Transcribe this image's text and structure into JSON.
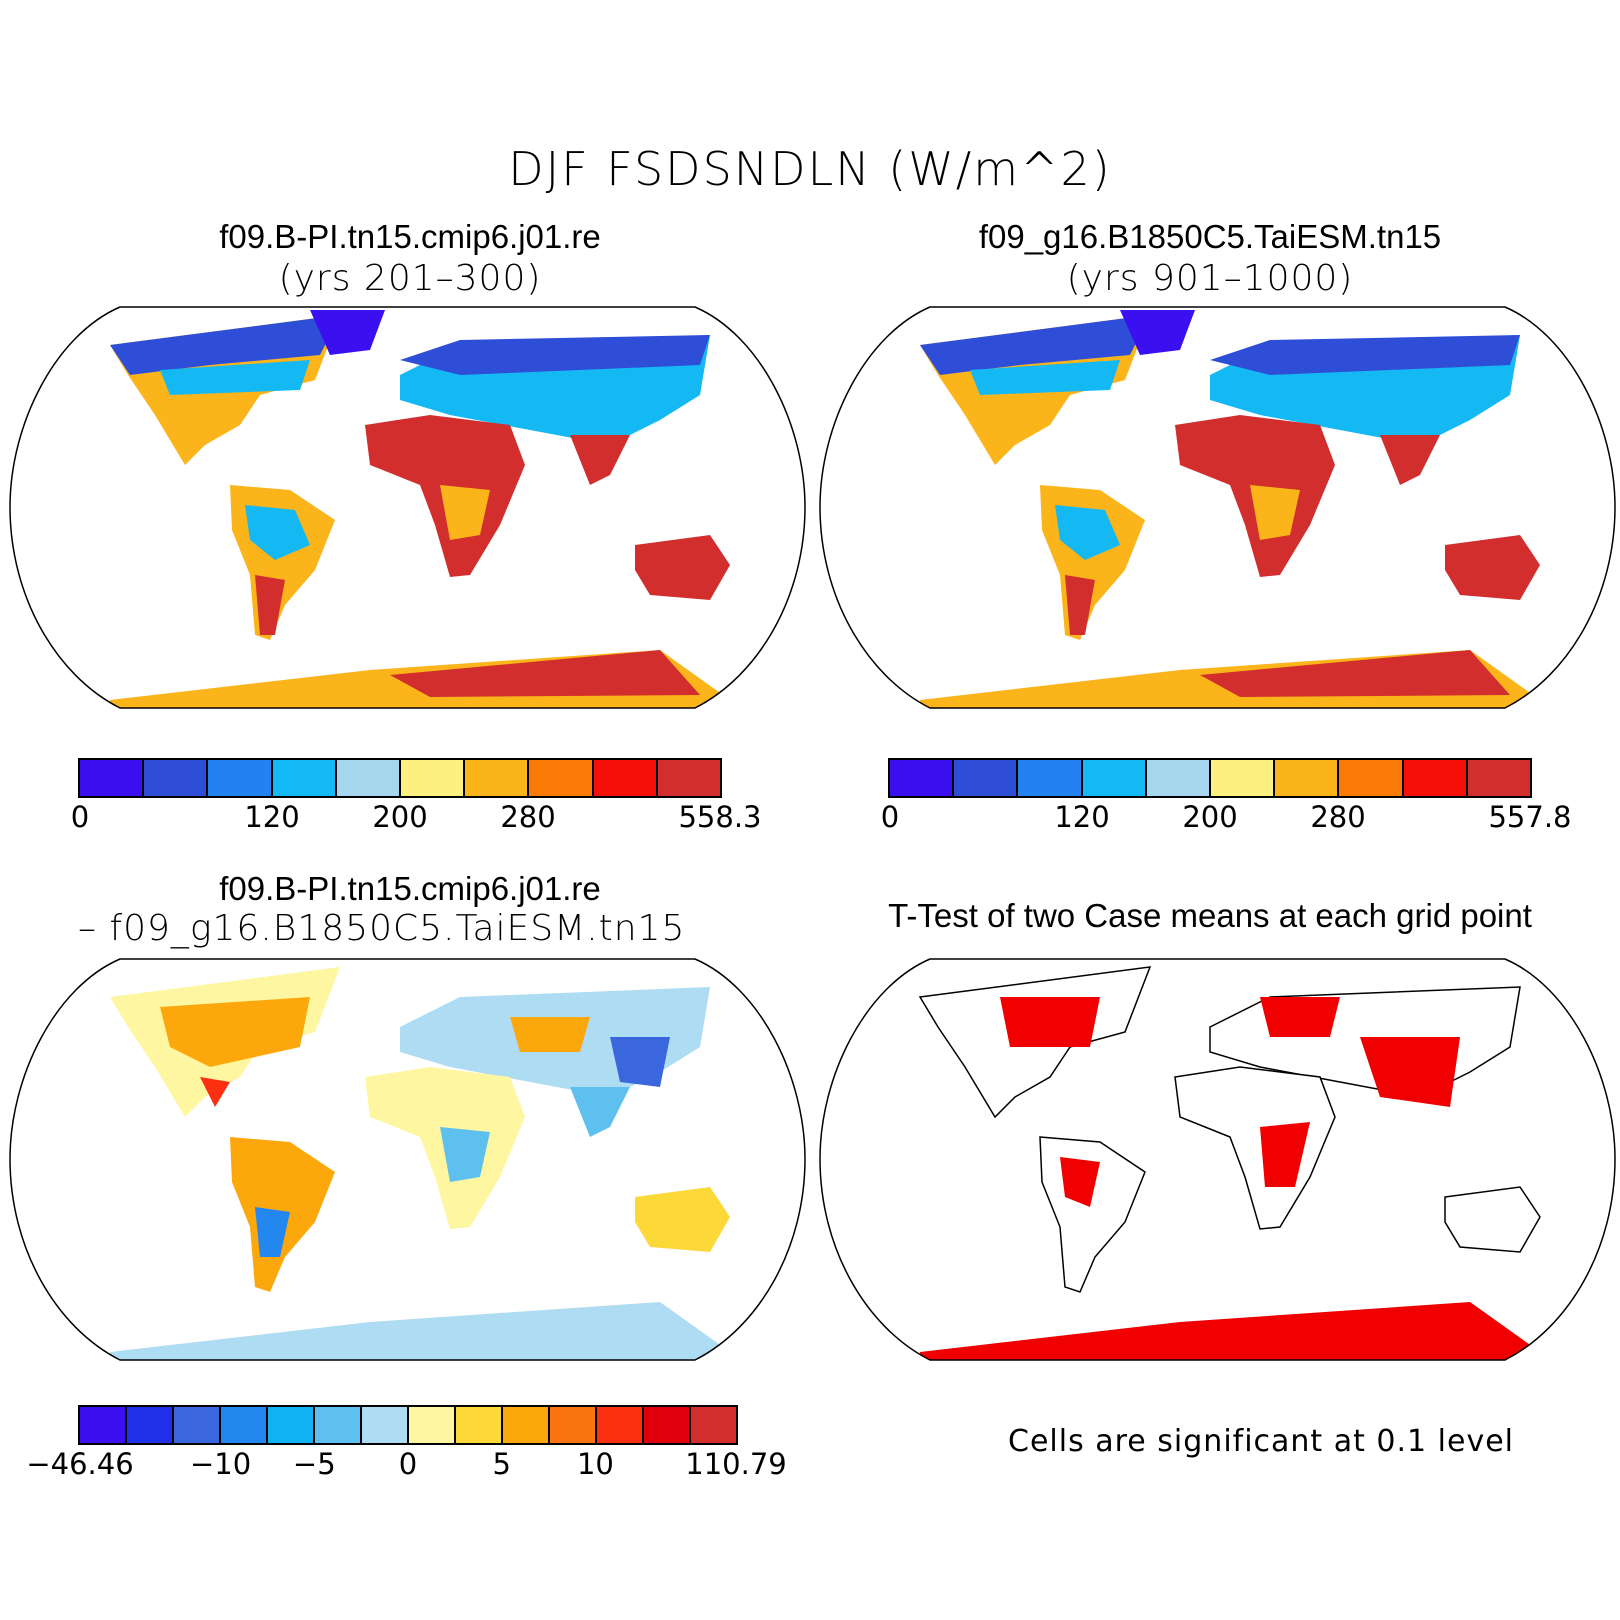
{
  "title": "DJF FSDSNDLN (W/m^2)",
  "panels": {
    "case1": {
      "title": "f09.B-PI.tn15.cmip6.j01.re",
      "years": "(yrs 201–300)"
    },
    "case2": {
      "title": "f09_g16.B1850C5.TaiESM.tn15",
      "years": "(yrs 901–1000)"
    },
    "diff": {
      "title": "f09.B-PI.tn15.cmip6.j01.re",
      "subtitle": "– f09_g16.B1850C5.TaiESM.tn15"
    },
    "ttest": {
      "title": "T-Test of two Case means at each grid point",
      "note": "Cells are significant at 0.1 level"
    }
  },
  "colorbars": {
    "case1": {
      "colors": [
        "#3b10f0",
        "#2f4ed8",
        "#2482f0",
        "#14b8f2",
        "#a6d5ee",
        "#fcf080",
        "#fbb41a",
        "#fa7a08",
        "#f41008",
        "#d22e2e"
      ],
      "tick_labels": [
        "0",
        "120",
        "200",
        "280",
        "558.3"
      ],
      "tick_positions": [
        0,
        3,
        5,
        7,
        10
      ]
    },
    "case2": {
      "colors": [
        "#3b10f0",
        "#2f4ed8",
        "#2482f0",
        "#14b8f2",
        "#a6d5ee",
        "#fcf080",
        "#fbb41a",
        "#fa7a08",
        "#f41008",
        "#d22e2e"
      ],
      "tick_labels": [
        "0",
        "120",
        "200",
        "280",
        "557.8"
      ],
      "tick_positions": [
        0,
        3,
        5,
        7,
        10
      ]
    },
    "diff": {
      "colors": [
        "#3b10f0",
        "#1f30e8",
        "#3a66de",
        "#2288f0",
        "#10b2f4",
        "#5ec0ee",
        "#aedcf2",
        "#fef6a0",
        "#fcd838",
        "#fca80c",
        "#fa7410",
        "#fc3010",
        "#e0000c",
        "#d22e2e"
      ],
      "tick_labels": [
        "−46.46",
        "−10",
        "−5",
        "0",
        "5",
        "10",
        "110.79"
      ],
      "tick_positions": [
        0,
        3,
        5,
        7,
        9,
        11,
        14
      ]
    }
  }
}
